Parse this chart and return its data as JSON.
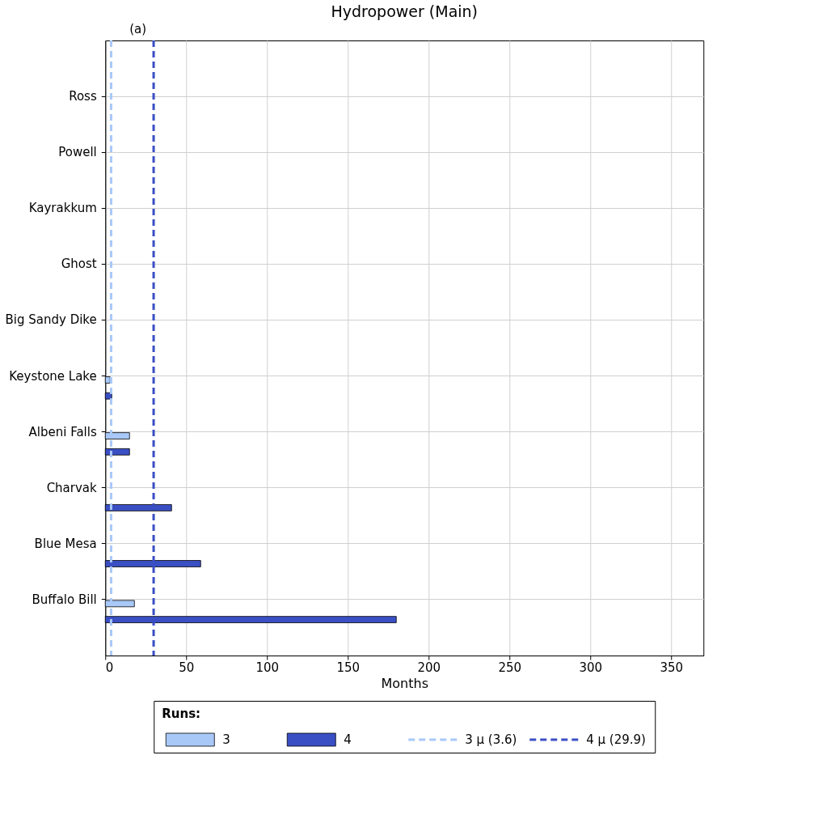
{
  "chart_data": {
    "type": "bar",
    "orientation": "horizontal",
    "title": "Hydropower (Main)",
    "annotations": [
      "(a)"
    ],
    "xlabel": "Months",
    "legend_title": "Runs:",
    "legend": "bottom",
    "grid": true,
    "categories": [
      "Ross",
      "Powell",
      "Kayrakkum",
      "Ghost",
      "Big Sandy Dike",
      "Keystone Lake",
      "Albeni Falls",
      "Charvak",
      "Blue Mesa",
      "Buffalo Bill"
    ],
    "series": [
      {
        "name": "3",
        "color": "#a8c8f8",
        "values": [
          null,
          null,
          null,
          null,
          null,
          3,
          15,
          null,
          null,
          18
        ]
      },
      {
        "name": "4",
        "color": "#3a4fc4",
        "values": [
          null,
          null,
          null,
          null,
          null,
          4,
          15,
          41,
          59,
          180
        ]
      }
    ],
    "xlim": [
      0,
      370
    ],
    "xticks": [
      0,
      50,
      100,
      150,
      200,
      250,
      300,
      350
    ],
    "ref_lines": [
      {
        "axis": "x",
        "value": 3.6,
        "label": "3 μ (3.6)",
        "color": "#a8c8f8",
        "line_style": "dashed"
      },
      {
        "axis": "x",
        "value": 29.9,
        "label": "4 μ (29.9)",
        "color": "#3a4fc4",
        "line_style": "dashed"
      }
    ]
  }
}
